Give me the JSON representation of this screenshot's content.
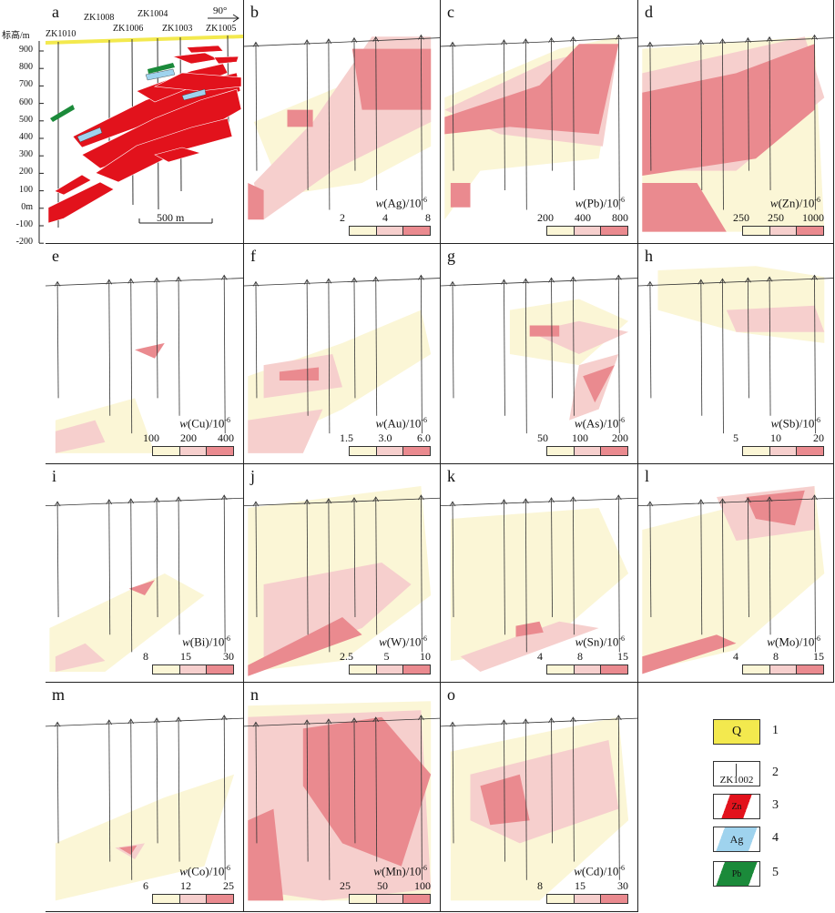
{
  "elevation_axis": {
    "title": "标高/m",
    "ticks": [
      "900",
      "800",
      "700",
      "600",
      "500",
      "400",
      "300",
      "200",
      "100",
      "0m",
      "-100",
      "-200"
    ]
  },
  "panel_a": {
    "label": "a",
    "drillholes": [
      "ZK1010",
      "ZK1008",
      "ZK1006",
      "ZK1004",
      "ZK1003",
      "ZK1005"
    ],
    "azimuth": "90°",
    "scale": "500 m"
  },
  "panels": [
    {
      "label": "b",
      "element": "Ag",
      "ticks": [
        "2",
        "4",
        "8"
      ]
    },
    {
      "label": "c",
      "element": "Pb",
      "ticks": [
        "200",
        "400",
        "800"
      ]
    },
    {
      "label": "d",
      "element": "Zn",
      "ticks": [
        "250",
        "250",
        "1000"
      ]
    },
    {
      "label": "e",
      "element": "Cu",
      "ticks": [
        "100",
        "200",
        "400"
      ]
    },
    {
      "label": "f",
      "element": "Au",
      "ticks": [
        "1.5",
        "3.0",
        "6.0"
      ]
    },
    {
      "label": "g",
      "element": "As",
      "ticks": [
        "50",
        "100",
        "200"
      ]
    },
    {
      "label": "h",
      "element": "Sb",
      "ticks": [
        "5",
        "10",
        "20"
      ]
    },
    {
      "label": "i",
      "element": "Bi",
      "ticks": [
        "8",
        "15",
        "30"
      ]
    },
    {
      "label": "j",
      "element": "W",
      "ticks": [
        "2.5",
        "5",
        "10"
      ]
    },
    {
      "label": "k",
      "element": "Sn",
      "ticks": [
        "4",
        "8",
        "15"
      ]
    },
    {
      "label": "l",
      "element": "Mo",
      "ticks": [
        "4",
        "8",
        "15"
      ]
    },
    {
      "label": "m",
      "element": "Co",
      "ticks": [
        "6",
        "12",
        "25"
      ]
    },
    {
      "label": "n",
      "element": "Mn",
      "ticks": [
        "25",
        "50",
        "100"
      ]
    },
    {
      "label": "o",
      "element": "Cd",
      "ticks": [
        "8",
        "15",
        "30"
      ]
    }
  ],
  "legend": {
    "items": [
      {
        "num": "1",
        "symbol": "Q"
      },
      {
        "num": "2",
        "symbol": "ZK1002"
      },
      {
        "num": "3",
        "symbol": "Zn"
      },
      {
        "num": "4",
        "symbol": "Ag"
      },
      {
        "num": "5",
        "symbol": "Pb"
      }
    ]
  },
  "colors": {
    "low": "#fbf6d6",
    "mid": "#f6cfcd",
    "high": "#ea8a8f",
    "zn_ore": "#e2121c",
    "ag_ore": "#9fd3ee",
    "pb_ore": "#1b8a3a",
    "quaternary": "#f3e94e"
  }
}
